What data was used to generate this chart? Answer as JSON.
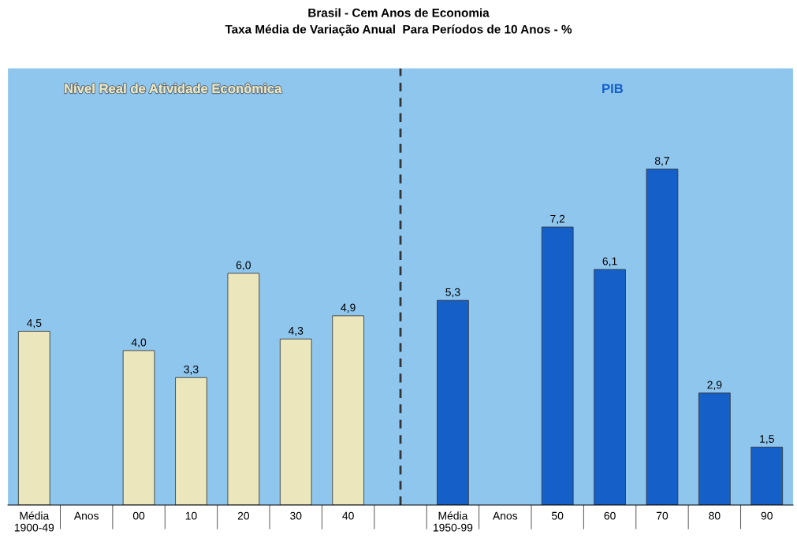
{
  "chart_data": {
    "type": "bar",
    "title": "Brasil - Cem Anos de Economia",
    "subtitle": "Taxa Média de Variação Anual  Para Períodos de 10 Anos - %",
    "categories": [
      "Média\n1900-49",
      "Anos",
      "00",
      "10",
      "20",
      "30",
      "40",
      null,
      "Média\n1950-99",
      "Anos",
      "50",
      "60",
      "70",
      "80",
      "90"
    ],
    "series": [
      {
        "color": "#ebe6bc",
        "values": [
          4.5,
          null,
          4.0,
          3.3,
          6.0,
          4.3,
          4.9,
          null,
          null,
          null,
          null,
          null,
          null,
          null,
          null
        ],
        "value_labels": [
          "4,5",
          null,
          "4,0",
          "3,3",
          "6,0",
          "4,3",
          "4,9",
          null,
          null,
          null,
          null,
          null,
          null,
          null,
          null
        ]
      },
      {
        "color": "#1560c8",
        "values": [
          null,
          null,
          null,
          null,
          null,
          null,
          null,
          null,
          5.3,
          null,
          7.2,
          6.1,
          8.7,
          2.9,
          1.5
        ],
        "value_labels": [
          null,
          null,
          null,
          null,
          null,
          null,
          null,
          null,
          "5,3",
          null,
          "7,2",
          "6,1",
          "8,7",
          "2,9",
          "1,5"
        ]
      }
    ],
    "annotations": [
      "Nível Real de Atividade Econômica",
      "PIB"
    ],
    "tick_labels": "x",
    "legend": false
  }
}
